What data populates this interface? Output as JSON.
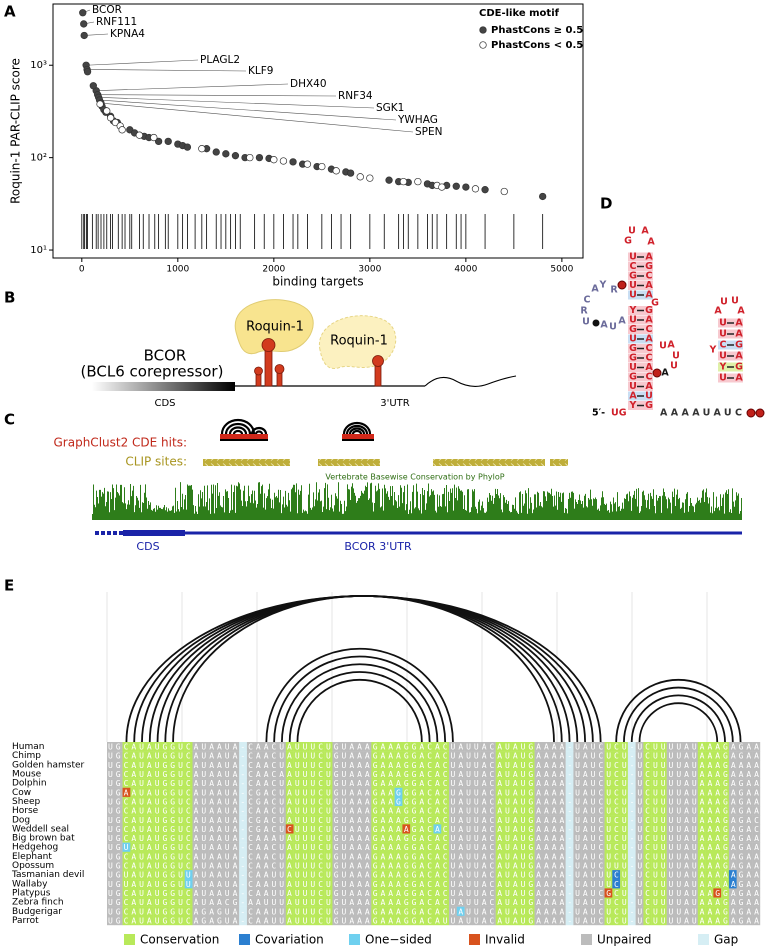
{
  "panel_a": {
    "label": "A"
  },
  "chart_data": {
    "type": "scatter",
    "x_label": "binding targets",
    "y_label": "Roquin-1 PAR-CLIP score",
    "log_y": true,
    "xlim": [
      -300,
      5220
    ],
    "ylim": [
      8.2,
      4600
    ],
    "xticks": [
      0,
      1000,
      2000,
      3000,
      4000,
      5000
    ],
    "yticks": [
      {
        "value": 10,
        "label": "10¹"
      },
      {
        "value": 100,
        "label": "10²"
      },
      {
        "value": 1000,
        "label": "10³"
      }
    ],
    "legend_title": "CDE-like motif",
    "legend": "upper right",
    "series": [
      {
        "name": "PhastCons ≥ 0.5",
        "color": "#444444",
        "x": [
          10,
          20,
          25,
          45,
          55,
          150,
          165,
          175,
          185,
          200,
          60,
          120,
          210,
          230,
          250,
          300,
          330,
          370,
          500,
          550,
          650,
          700,
          800,
          900,
          1000,
          1050,
          1100,
          1300,
          1400,
          1500,
          1600,
          1700,
          1850,
          1950,
          2200,
          2300,
          2450,
          2600,
          2750,
          2800,
          3200,
          3300,
          3400,
          3600,
          3650,
          3800,
          3900,
          4000,
          4200,
          4800
        ],
        "values": [
          3700,
          2800,
          2100,
          1000,
          900,
          530,
          480,
          450,
          420,
          390,
          850,
          600,
          360,
          330,
          310,
          280,
          250,
          240,
          200,
          185,
          170,
          165,
          150,
          150,
          140,
          135,
          130,
          125,
          115,
          110,
          105,
          100,
          100,
          98,
          90,
          85,
          80,
          75,
          70,
          68,
          57,
          55,
          54,
          52,
          50,
          50,
          49,
          48,
          45,
          38
        ]
      },
      {
        "name": "PhastCons < 0.5",
        "color": "#ffffff",
        "x": [
          190,
          260,
          300,
          350,
          400,
          420,
          600,
          750,
          1250,
          1750,
          2000,
          2100,
          2350,
          2500,
          2650,
          2900,
          3000,
          3350,
          3500,
          3700,
          3750,
          4100,
          4400
        ],
        "values": [
          380,
          320,
          270,
          240,
          220,
          200,
          175,
          165,
          125,
          100,
          95,
          92,
          85,
          80,
          72,
          62,
          60,
          55,
          55,
          50,
          48,
          46,
          43
        ]
      }
    ],
    "annotations": [
      {
        "text": "BCOR",
        "x": 10,
        "y": 3700
      },
      {
        "text": "RNF111",
        "x": 20,
        "y": 2800
      },
      {
        "text": "KPNA4",
        "x": 25,
        "y": 2100
      },
      {
        "text": "PLAGL2",
        "x": 45,
        "y": 1000
      },
      {
        "text": "KLF9",
        "x": 55,
        "y": 900
      },
      {
        "text": "DHX40",
        "x": 150,
        "y": 530
      },
      {
        "text": "RNF34",
        "x": 165,
        "y": 480
      },
      {
        "text": "SGK1",
        "x": 175,
        "y": 450
      },
      {
        "text": "YWHAG",
        "x": 185,
        "y": 420
      },
      {
        "text": "SPEN",
        "x": 200,
        "y": 390
      }
    ],
    "rug_x": [
      0,
      20,
      30,
      50,
      60,
      110,
      150,
      170,
      200,
      230,
      260,
      300,
      320,
      380,
      420,
      450,
      500,
      520,
      600,
      640,
      700,
      760,
      800,
      870,
      900,
      1000,
      1050,
      1100,
      1180,
      1250,
      1300,
      1400,
      1450,
      1500,
      1550,
      1600,
      1650,
      1800,
      1900,
      2000,
      2100,
      2200,
      2250,
      2350,
      2500,
      2600,
      2700,
      2800,
      3000,
      3150,
      3300,
      3350,
      3400,
      3500,
      3600,
      3650,
      3700,
      3800,
      3900,
      3950,
      4000,
      4200,
      4500,
      4800
    ]
  },
  "panel_b": {
    "label": "B",
    "proteins": [
      "Roquin-1",
      "Roquin-1"
    ],
    "gene": "BCOR",
    "gene_full": "(BCL6 corepressor)",
    "regions": [
      "CDS",
      "3'UTR"
    ]
  },
  "panel_c": {
    "label": "C",
    "cde_label": "GraphClust2 CDE hits:",
    "clip_label": "CLIP sites:",
    "track_title": "Vertebrate Basewise Conservation by PhyloP",
    "regions": [
      "CDS",
      "BCOR 3'UTR"
    ]
  },
  "panel_d": {
    "label": "D",
    "left_loop": [
      "G",
      "U",
      "A",
      "A"
    ],
    "left_stem": [
      [
        "U",
        "A"
      ],
      [
        "C",
        "G"
      ],
      [
        "G",
        "C"
      ],
      [
        "U",
        "A"
      ],
      [
        "U",
        "A"
      ],
      [
        "Y",
        "G"
      ],
      [
        "U",
        "A"
      ],
      [
        "G",
        "C"
      ],
      [
        "U",
        "A"
      ],
      [
        "G",
        "C"
      ],
      [
        "G",
        "C"
      ],
      [
        "U",
        "A"
      ],
      [
        "G",
        "C"
      ],
      [
        "U",
        "A"
      ],
      [
        "A",
        "U"
      ],
      [
        "Y",
        "G"
      ]
    ],
    "left_bulge": [
      "A",
      "Y",
      "R",
      "C",
      "R",
      "U",
      "A",
      "U",
      "A"
    ],
    "right_bulge_1": [
      "G"
    ],
    "right_bulge_2": [
      "U",
      "A",
      "U",
      "U",
      "A"
    ],
    "right_loop": [
      "A",
      "U",
      "U",
      "A"
    ],
    "right_stem": [
      [
        "U",
        "A"
      ],
      [
        "U",
        "A"
      ],
      [
        "C",
        "G"
      ],
      [
        "U",
        "A"
      ],
      [
        "Y",
        "G"
      ],
      [
        "U",
        "A"
      ]
    ],
    "right_stem_bulge": [
      "Y"
    ],
    "five_prime": "5′-",
    "start": "UG",
    "linker": "AAAAUAUC"
  },
  "panel_e": {
    "label": "E",
    "rows": [
      {
        "species": "Human",
        "sequence": "UGCAUAUGGUCAUAAUA-CAACUAUUUCUGUAAAGAAAGGACACUAUUACAUAUGAAAA-UAUCUCU-UCUUUUAUAAAGAGAA"
      },
      {
        "species": "Chimp",
        "sequence": "UGCAUAUGGUCAUAAUA-CAACUAUUUCUGUAAAGAAAGGACACUAUUACAUAUGAAAA-UAUCUCU-UCUUUUAUAAAGAGAA"
      },
      {
        "species": "Golden hamster",
        "sequence": "UGCAUAUGGUCAUAAUA-CAACUAUUUCUGUAAAGAAAGGACACUAUUACAUAUGAAAA-UAUCUCU-UCUUUUAUAAAGAAAA"
      },
      {
        "species": "Mouse",
        "sequence": "UGCAUAUGGUCAUAAUA-CAACAAUUUCUGUAAAGAAAGGACACUAUUACAUAUGAAAA-UAUCUCU-UCUUUUAUAAAGAAAA"
      },
      {
        "species": "Dolphin",
        "sequence": "UGCAUAUGGUCAUAAUA-CAACUAUUUCUGUAAAGAAAGGACACUAUUACAUAUGAAAA-UAUCUCU-UCUUUUAUAAAGAGAA"
      },
      {
        "species": "Cow",
        "sequence": "UGAAUAUGGUCAUAAUA-CGACUAUUUCUGUAAAGAAGGGACACUAUUACAUAUGAAAA-UAUCUCU-UCUUUUAUAAAGAGAA"
      },
      {
        "species": "Sheep",
        "sequence": "UGCAUAUGGUCAUAAUA-CGACUAUUUCUGUAAAGAAGGGACACUAUUACAUAUGAAAA-UAUCUCU-UCUUUUAUAAAGAGAA"
      },
      {
        "species": "Horse",
        "sequence": "UGCAUAUGGUCAUAAUA-CAACUAUUUCUGUAAAGAAAGGACACUAUUACAUAUGAAAA-UAUCUCU-UCUUUUAUAAAGAGAA"
      },
      {
        "species": "Dog",
        "sequence": "UGCAUAUGGUCAUAAUA-CGACUAUUUCUGUAAAGAAAGGACACUAUUACAUAUGAAAA-UAUCUCU-UCUUUUAUAAAGAGAC"
      },
      {
        "species": "Weddell seal",
        "sequence": "UGCAUAUGGUCAUAAUA-CGACUCUUUCUGUAAAGAAAAGACACUAUUACAUAUGAAAA-UAUCUCU-UCUUUUAUAAAGAGAC"
      },
      {
        "species": "Big brown bat",
        "sequence": "UGCAUAUGGUCAUAAUA-CAAAUAUUUCUGUAAAGAAAGGACACUAUUACAUAUGAAAA-UAUCUCU-UCUUUUAUAAAGAGAA"
      },
      {
        "species": "Hedgehog",
        "sequence": "UGUAUAUGGUCAUAAUA-CAACUAUUUCUGUAAAGAAAGGACACUAUUACAUAUGAAAA-UAUCUCU-UCUUUUAUAAAGAGAA"
      },
      {
        "species": "Elephant",
        "sequence": "UGCAUAUGGUCAUAAUA-CAACUAUUUCUGUAAAGAAAGGACACUAUUACAUAUGAAAA-UAUCUCU-UCUUUUAUAAAGAGAA"
      },
      {
        "species": "Opossum",
        "sequence": "UGCAUAUGGUCAUAAUA-CAACUAUUUCUGUAAAGAAAGGACACUAUUACAUAUGAAAA-UAUCUUU-UCUUUUAUAAAGAGAA"
      },
      {
        "species": "Tasmanian devil",
        "sequence": "UGUAUAUGGUUAUAAUA-CAAUUAUUUCUGUAAAGAAAGGACACUAUUACAUAUGAAAA-UAUUUCU-UCUUUUAUAAAAAGAA"
      },
      {
        "species": "Wallaby",
        "sequence": "UGUAUAUGGUUAUAAUA-CAAUUAUUUCUGUAAAGAAAGGACACUAUUACAUAUGAAAA-UAUUUCU-UCUUUUAUAAAAAGAA"
      },
      {
        "species": "Platypus",
        "sequence": "UGCAUAUGGUCAUAAUA-CAAUUAUUUCUGUAAAGAAAGGACACUAUUACAUAUGAAAA-UAUCGCU-UCUUUUAUAAGGAGAA"
      },
      {
        "species": "Zebra finch",
        "sequence": "UGCAUAUGGUCAUAACG-AAUUUAUUUCUGUAAAGAAAGGACACUAUUACAUAUGAAAA-UAUCUCU-UCUUUUAUAAAGAGAA"
      },
      {
        "species": "Budgerigar",
        "sequence": "UGCAUAUGGUCAGAGUA-CAAUUAUUUCUGUAAAGAAAGGACACUAUUACAUAUGAAAA-UAUCUCU-UCUUUUAUAAAGAGAA"
      },
      {
        "species": "Parrot",
        "sequence": "UGCAUAUGGUCAGAGUA-CAAUUAUUUCUGUAAAGAAAGGACAUUAUUACAUAUGAAAA-UAUCUCU-UCUUUUAUAAAGAGAA"
      }
    ],
    "legend": [
      {
        "name": "Conservation",
        "color": "#b8e95a"
      },
      {
        "name": "Covariation",
        "color": "#2b7fd0"
      },
      {
        "name": "One−sided",
        "color": "#6fd0ef"
      },
      {
        "name": "Invalid",
        "color": "#d8531e"
      },
      {
        "name": "Unpaired",
        "color": "#bcbcbc"
      },
      {
        "name": "Gap",
        "color": "#d6eef4"
      }
    ]
  }
}
